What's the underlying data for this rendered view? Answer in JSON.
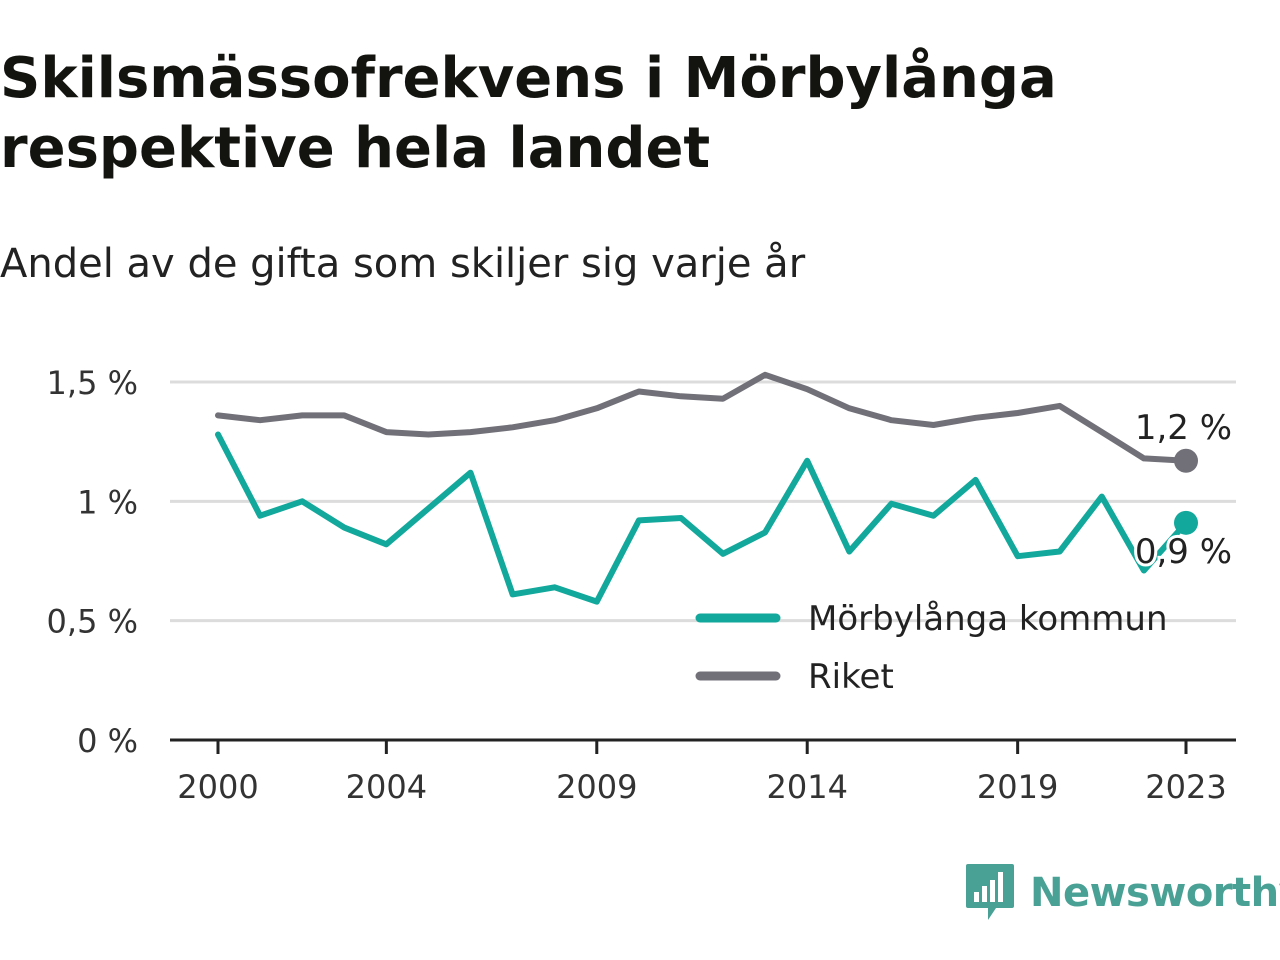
{
  "title": "Skilsmässofrekvens i Mörbylånga respektive hela landet",
  "subtitle": "Andel av de gifta som skiljer sig varje år",
  "brand": {
    "name": "Newsworthy",
    "color": "#49a195",
    "icon": "bar-chart-speech-bubble-icon"
  },
  "colors": {
    "morbylanga": "#12a89b",
    "riket": "#717078",
    "grid": "#dcdcdc",
    "axis": "#222222"
  },
  "chart_data": {
    "type": "line",
    "x": [
      2000,
      2001,
      2002,
      2003,
      2004,
      2005,
      2006,
      2007,
      2008,
      2009,
      2010,
      2011,
      2012,
      2013,
      2014,
      2015,
      2016,
      2017,
      2018,
      2019,
      2020,
      2021,
      2022,
      2023
    ],
    "x_ticks": [
      2000,
      2004,
      2009,
      2014,
      2019,
      2023
    ],
    "x_tick_labels": [
      "2000",
      "2004",
      "2009",
      "2014",
      "2019",
      "2023"
    ],
    "y_ticks": [
      0,
      0.5,
      1,
      1.5
    ],
    "y_tick_labels": [
      "0 %",
      "0,5 %",
      "1 %",
      "1,5 %"
    ],
    "ylim": [
      0,
      1.5
    ],
    "grid": true,
    "legend_position": "bottom-right",
    "series": [
      {
        "name": "Mörbylånga kommun",
        "key": "morbylanga",
        "values": [
          1.28,
          0.94,
          1.0,
          0.89,
          0.82,
          0.97,
          1.12,
          0.61,
          0.64,
          0.58,
          0.92,
          0.93,
          0.78,
          0.87,
          1.17,
          0.79,
          0.99,
          0.94,
          1.09,
          0.77,
          0.79,
          1.02,
          0.71,
          0.91
        ],
        "end_label": "0,9 %"
      },
      {
        "name": "Riket",
        "key": "riket",
        "values": [
          1.36,
          1.34,
          1.36,
          1.36,
          1.29,
          1.28,
          1.29,
          1.31,
          1.34,
          1.39,
          1.46,
          1.44,
          1.43,
          1.53,
          1.47,
          1.39,
          1.34,
          1.32,
          1.35,
          1.37,
          1.4,
          1.29,
          1.18,
          1.17
        ],
        "end_label": "1,2 %"
      }
    ]
  }
}
